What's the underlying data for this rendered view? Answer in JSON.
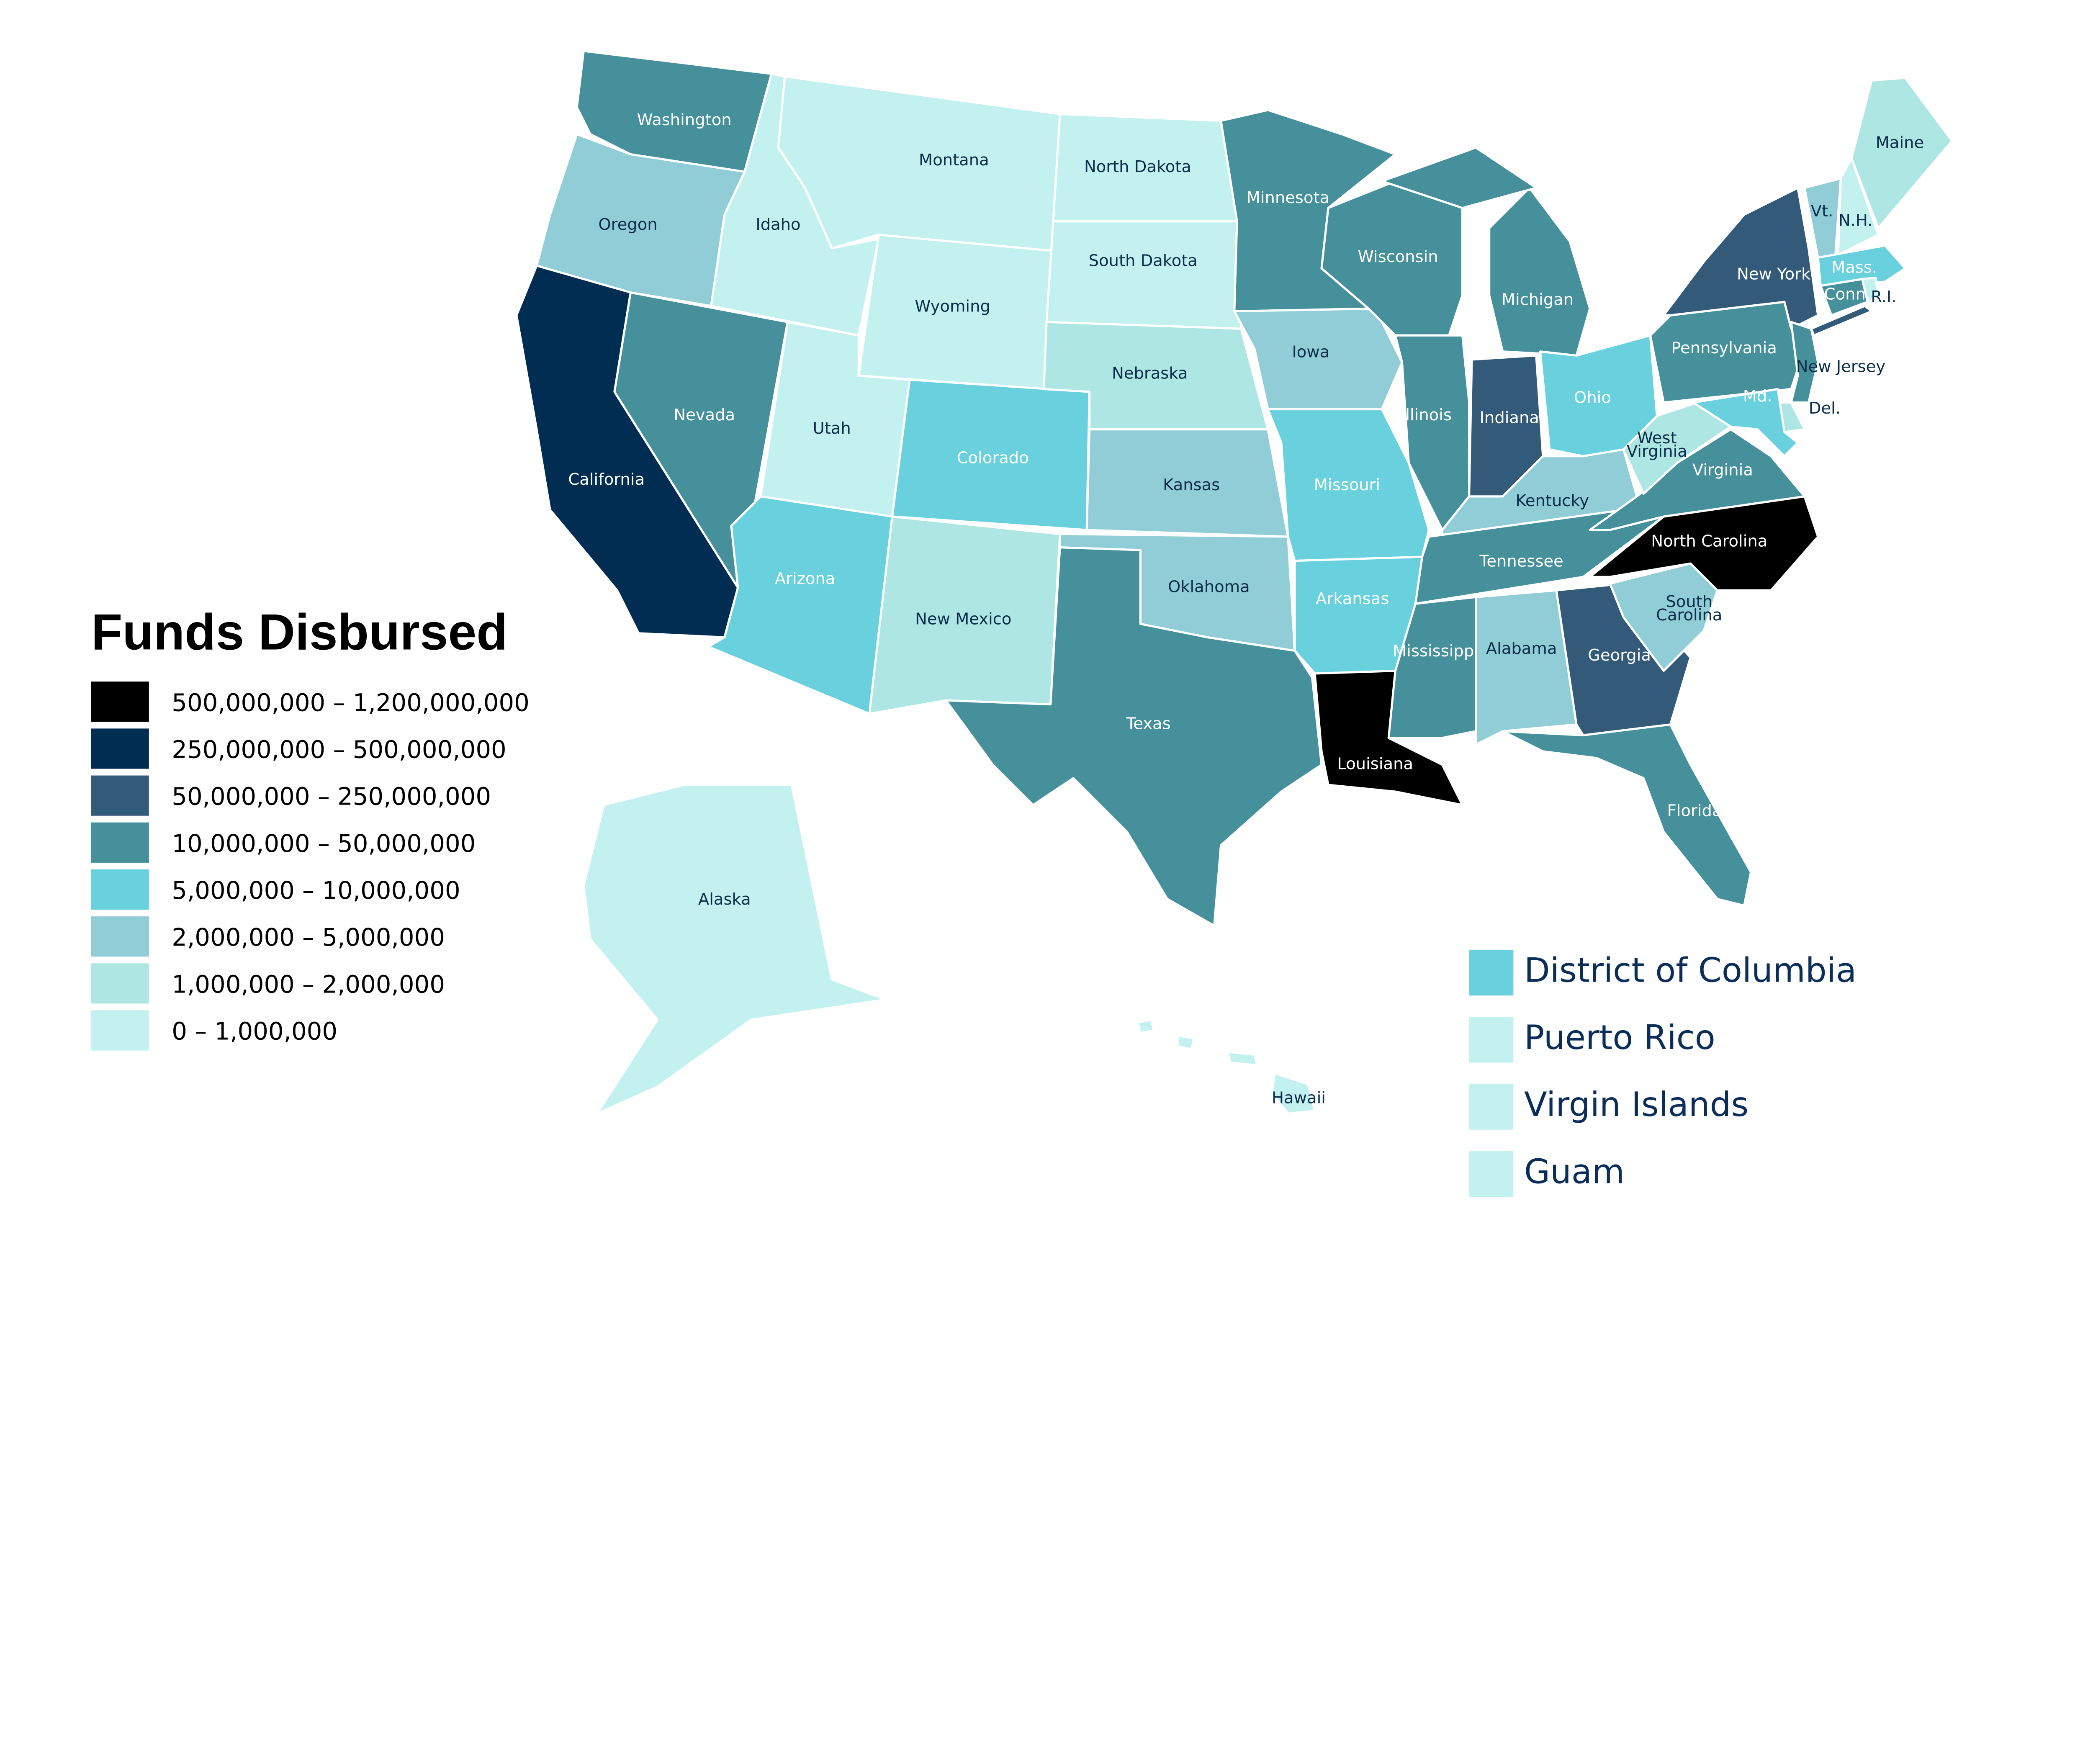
{
  "legend": {
    "title": "Funds Disbursed",
    "bins": [
      {
        "label": "500,000,000 – 1,200,000,000",
        "color": "#000000"
      },
      {
        "label": "250,000,000 – 500,000,000",
        "color": "#022d52"
      },
      {
        "label": "50,000,000 – 250,000,000",
        "color": "#345a7a"
      },
      {
        "label": "10,000,000 – 50,000,000",
        "color": "#45909b"
      },
      {
        "label": "5,000,000 – 10,000,000",
        "color": "#68d1dd"
      },
      {
        "label": "2,000,000 – 5,000,000",
        "color": "#90cdd6"
      },
      {
        "label": "1,000,000 – 2,000,000",
        "color": "#aee6e3"
      },
      {
        "label": "0 – 1,000,000",
        "color": "#c3f1f0"
      }
    ]
  },
  "label_colors": {
    "dark": "#0b2d4a",
    "light": "#ffffff"
  },
  "states": {
    "WA": {
      "label": "Washington",
      "bin": 3
    },
    "OR": {
      "label": "Oregon",
      "bin": 5
    },
    "CA": {
      "label": "California",
      "bin": 1
    },
    "ID": {
      "label": "Idaho",
      "bin": 7
    },
    "NV": {
      "label": "Nevada",
      "bin": 3
    },
    "MT": {
      "label": "Montana",
      "bin": 7
    },
    "WY": {
      "label": "Wyoming",
      "bin": 7
    },
    "UT": {
      "label": "Utah",
      "bin": 7
    },
    "CO": {
      "label": "Colorado",
      "bin": 4
    },
    "AZ": {
      "label": "Arizona",
      "bin": 4
    },
    "NM": {
      "label": "New Mexico",
      "bin": 6
    },
    "ND": {
      "label": "North Dakota",
      "bin": 7
    },
    "SD": {
      "label": "South Dakota",
      "bin": 7
    },
    "NE": {
      "label": "Nebraska",
      "bin": 6
    },
    "KS": {
      "label": "Kansas",
      "bin": 5
    },
    "OK": {
      "label": "Oklahoma",
      "bin": 5
    },
    "TX": {
      "label": "Texas",
      "bin": 3
    },
    "MN": {
      "label": "Minnesota",
      "bin": 3
    },
    "IA": {
      "label": "Iowa",
      "bin": 5
    },
    "MO": {
      "label": "Missouri",
      "bin": 4
    },
    "AR": {
      "label": "Arkansas",
      "bin": 4
    },
    "LA": {
      "label": "Louisiana",
      "bin": 0
    },
    "WI": {
      "label": "Wisconsin",
      "bin": 3
    },
    "IL": {
      "label": "Illinois",
      "bin": 3
    },
    "MI": {
      "label": "Michigan",
      "bin": 3
    },
    "IN": {
      "label": "Indiana",
      "bin": 2
    },
    "OH": {
      "label": "Ohio",
      "bin": 4
    },
    "KY": {
      "label": "Kentucky",
      "bin": 5
    },
    "TN": {
      "label": "Tennessee",
      "bin": 3
    },
    "MS": {
      "label": "Mississippi",
      "bin": 3
    },
    "AL": {
      "label": "Alabama",
      "bin": 5
    },
    "GA": {
      "label": "Georgia",
      "bin": 2
    },
    "FL": {
      "label": "Florida",
      "bin": 3
    },
    "SC": {
      "label": "South Carolina",
      "bin": 5
    },
    "NC": {
      "label": "North Carolina",
      "bin": 0
    },
    "VA": {
      "label": "Virginia",
      "bin": 3
    },
    "WV": {
      "label": "West Virginia",
      "bin": 6
    },
    "PA": {
      "label": "Pennsylvania",
      "bin": 3
    },
    "NY": {
      "label": "New York",
      "bin": 2
    },
    "NJ": {
      "label": "New Jersey",
      "bin": 3
    },
    "DE": {
      "label": "Del.",
      "bin": 6
    },
    "MD": {
      "label": "Md.",
      "bin": 4
    },
    "VT": {
      "label": "Vt.",
      "bin": 5
    },
    "NH": {
      "label": "N.H.",
      "bin": 7
    },
    "ME": {
      "label": "Maine",
      "bin": 6
    },
    "MA": {
      "label": "Mass.",
      "bin": 4
    },
    "CT": {
      "label": "Conn.",
      "bin": 3
    },
    "RI": {
      "label": "R.I.",
      "bin": 7
    },
    "AK": {
      "label": "Alaska",
      "bin": 7
    },
    "HI": {
      "label": "Hawaii",
      "bin": 7
    }
  },
  "territories": [
    {
      "label": "District of Columbia",
      "bin": 4
    },
    {
      "label": "Puerto Rico",
      "bin": 7
    },
    {
      "label": "Virgin Islands",
      "bin": 7
    },
    {
      "label": "Guam",
      "bin": 7
    }
  ]
}
